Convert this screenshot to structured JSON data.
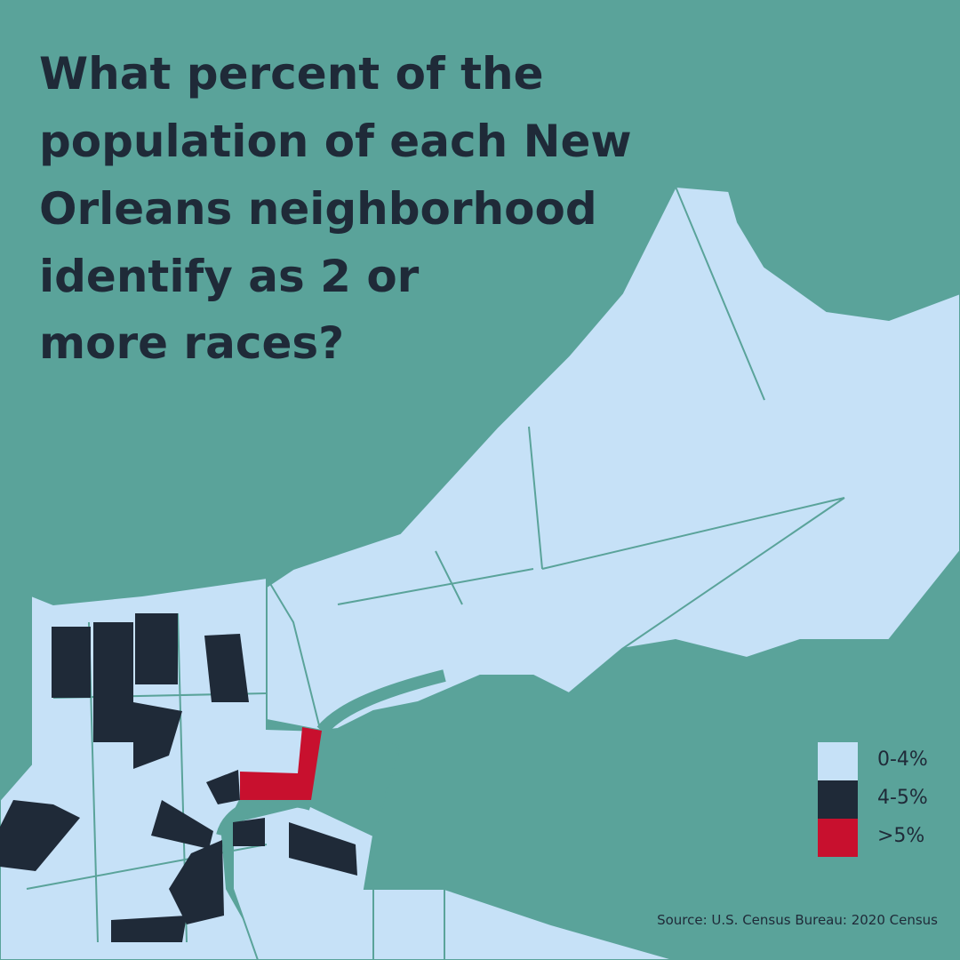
{
  "header": {
    "title_lines": [
      "What percent of the",
      "population of each New",
      "Orleans neighborhood",
      "identify as 2 or",
      "more races?"
    ]
  },
  "legend": [
    {
      "label": "0-4%",
      "color": "#c6e1f7"
    },
    {
      "label": "4-5%",
      "color": "#1f2a38"
    },
    {
      "label": ">5%",
      "color": "#c8102e"
    }
  ],
  "source": "Source: U.S. Census Bureau: 2020 Census"
}
